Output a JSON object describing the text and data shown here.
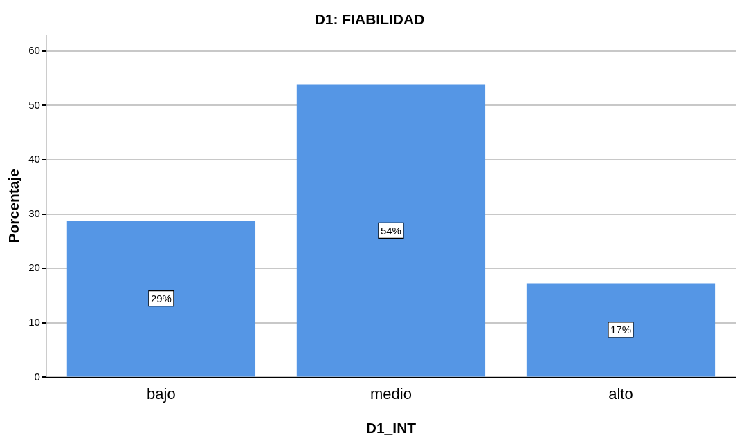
{
  "chart_data": {
    "type": "bar",
    "title": "D1: FIABILIDAD",
    "xlabel": "D1_INT",
    "ylabel": "Porcentaje",
    "categories": [
      "bajo",
      "medio",
      "alto"
    ],
    "values": [
      28.8,
      53.8,
      17.3
    ],
    "value_labels": [
      "29%",
      "54%",
      "17%"
    ],
    "color": "#5596e5",
    "ylim": [
      0,
      63
    ],
    "yticks": [
      0,
      10,
      20,
      30,
      40,
      50,
      60
    ],
    "grid": "y"
  }
}
